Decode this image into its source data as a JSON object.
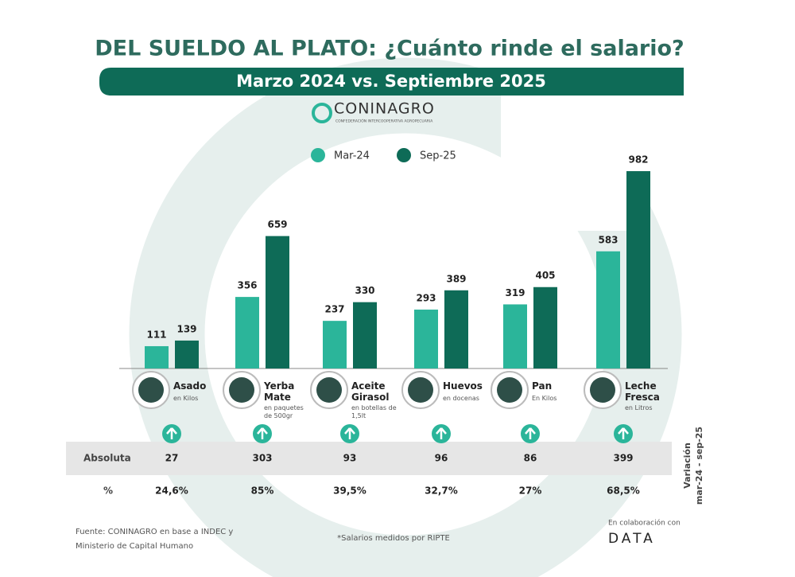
{
  "title": "DEL SUELDO AL PLATO: ¿Cuánto rinde el salario?",
  "subtitle": "Marzo 2024 vs. Septiembre 2025",
  "logo": {
    "name": "CONINAGRO",
    "tagline": "CONFEDERACIÓN INTERCOOPERATIVA AGROPECUARIA"
  },
  "chart_data": {
    "type": "bar",
    "categories": [
      "Asado",
      "Yerba Mate",
      "Aceite Girasol",
      "Huevos",
      "Pan",
      "Leche Fresca"
    ],
    "units": [
      "en Kilos",
      "en paquetes de 500gr",
      "en botellas de 1,5lt",
      "en docenas",
      "En Kilos",
      "en Litros"
    ],
    "series": [
      {
        "name": "Mar-24",
        "color": "#2bb59a",
        "values": [
          111,
          356,
          237,
          293,
          319,
          583
        ]
      },
      {
        "name": "Sep-25",
        "color": "#0e6b57",
        "values": [
          139,
          659,
          330,
          389,
          405,
          982
        ]
      }
    ]
  },
  "variation": {
    "label": [
      "Variación",
      "mar-24 - sep-25"
    ],
    "rows": [
      {
        "label": "Absoluta",
        "values": [
          27,
          303,
          93,
          96,
          86,
          399
        ]
      },
      {
        "label": "%",
        "values": [
          24.6,
          85,
          39.5,
          32.7,
          27,
          68.5
        ],
        "value_labels": [
          "24,6%",
          "85%",
          "39,5%",
          "32,7%",
          "27%",
          "68,5%"
        ]
      }
    ]
  },
  "footer": {
    "source": "Fuente: CONINAGRO en base a INDEC y Ministerio de Capital Humano",
    "note": "*Salarios medidos por RIPTE",
    "collab": "En colaboración con",
    "brand": "DATA"
  }
}
